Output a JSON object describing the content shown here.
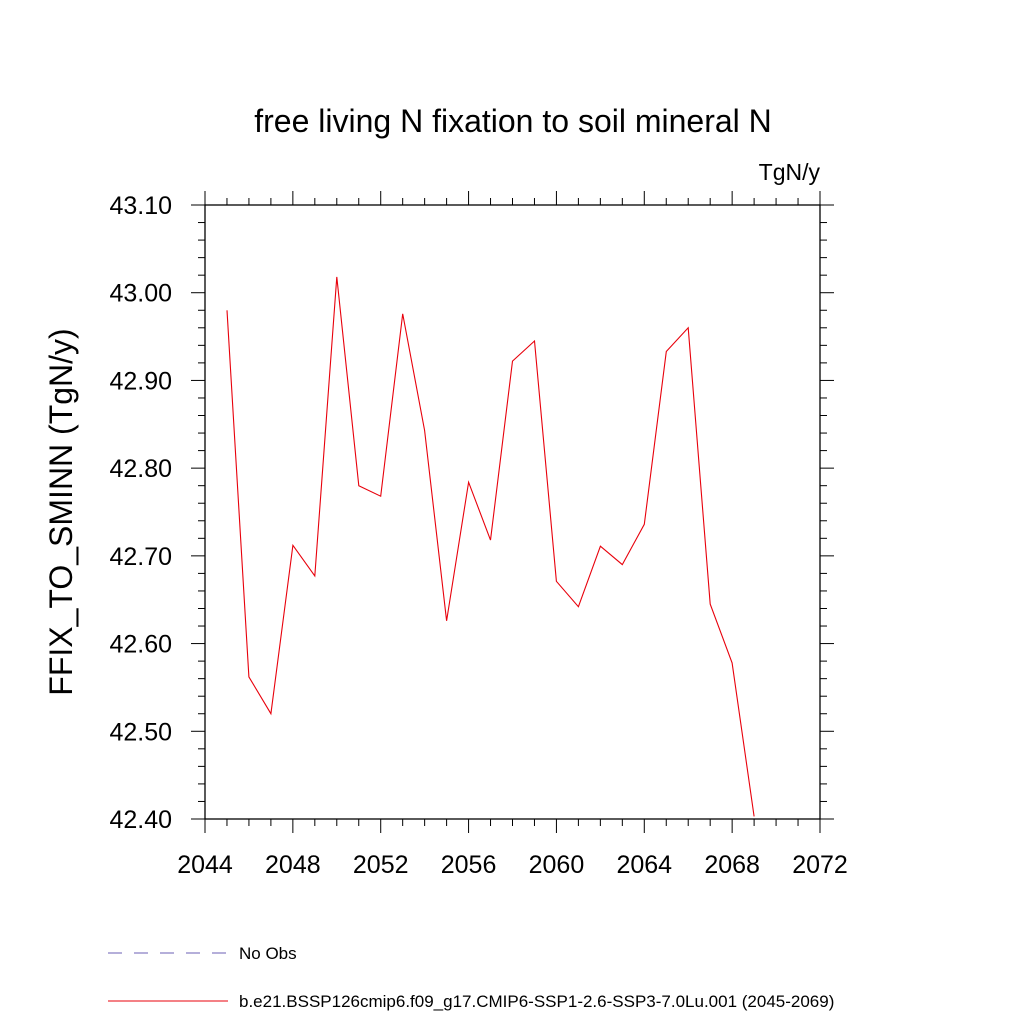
{
  "chart_data": {
    "type": "line",
    "title": "free living N fixation to soil mineral N",
    "units": "TgN/y",
    "ylabel": "FFIX_TO_SMINN  (TgN/y)",
    "xlabel": "",
    "xlim": [
      2044,
      2072
    ],
    "ylim": [
      42.4,
      43.1
    ],
    "xticks": [
      2044,
      2048,
      2052,
      2056,
      2060,
      2064,
      2068,
      2072
    ],
    "yticks": [
      "42.40",
      "42.50",
      "42.60",
      "42.70",
      "42.80",
      "42.90",
      "43.00",
      "43.10"
    ],
    "grid": false,
    "legend_position": "bottom",
    "legend": [
      {
        "label": "No Obs",
        "color": "#6b5fb5",
        "dash": true
      },
      {
        "label": "b.e21.BSSP126cmip6.f09_g17.CMIP6-SSP1-2.6-SSP3-7.0Lu.001 (2045-2069)",
        "color": "#e8000b",
        "dash": false
      }
    ],
    "series": [
      {
        "color": "#e8000b",
        "x": [
          2045,
          2046,
          2047,
          2048,
          2049,
          2050,
          2051,
          2052,
          2053,
          2054,
          2055,
          2056,
          2057,
          2058,
          2059,
          2060,
          2061,
          2062,
          2063,
          2064,
          2065,
          2066,
          2067,
          2068,
          2069
        ],
        "y": [
          42.98,
          42.562,
          42.52,
          42.712,
          42.677,
          43.018,
          42.78,
          42.768,
          42.976,
          42.843,
          42.626,
          42.784,
          42.718,
          42.922,
          42.945,
          42.671,
          42.642,
          42.711,
          42.69,
          42.736,
          42.933,
          42.96,
          42.645,
          42.578,
          42.403
        ]
      }
    ]
  }
}
